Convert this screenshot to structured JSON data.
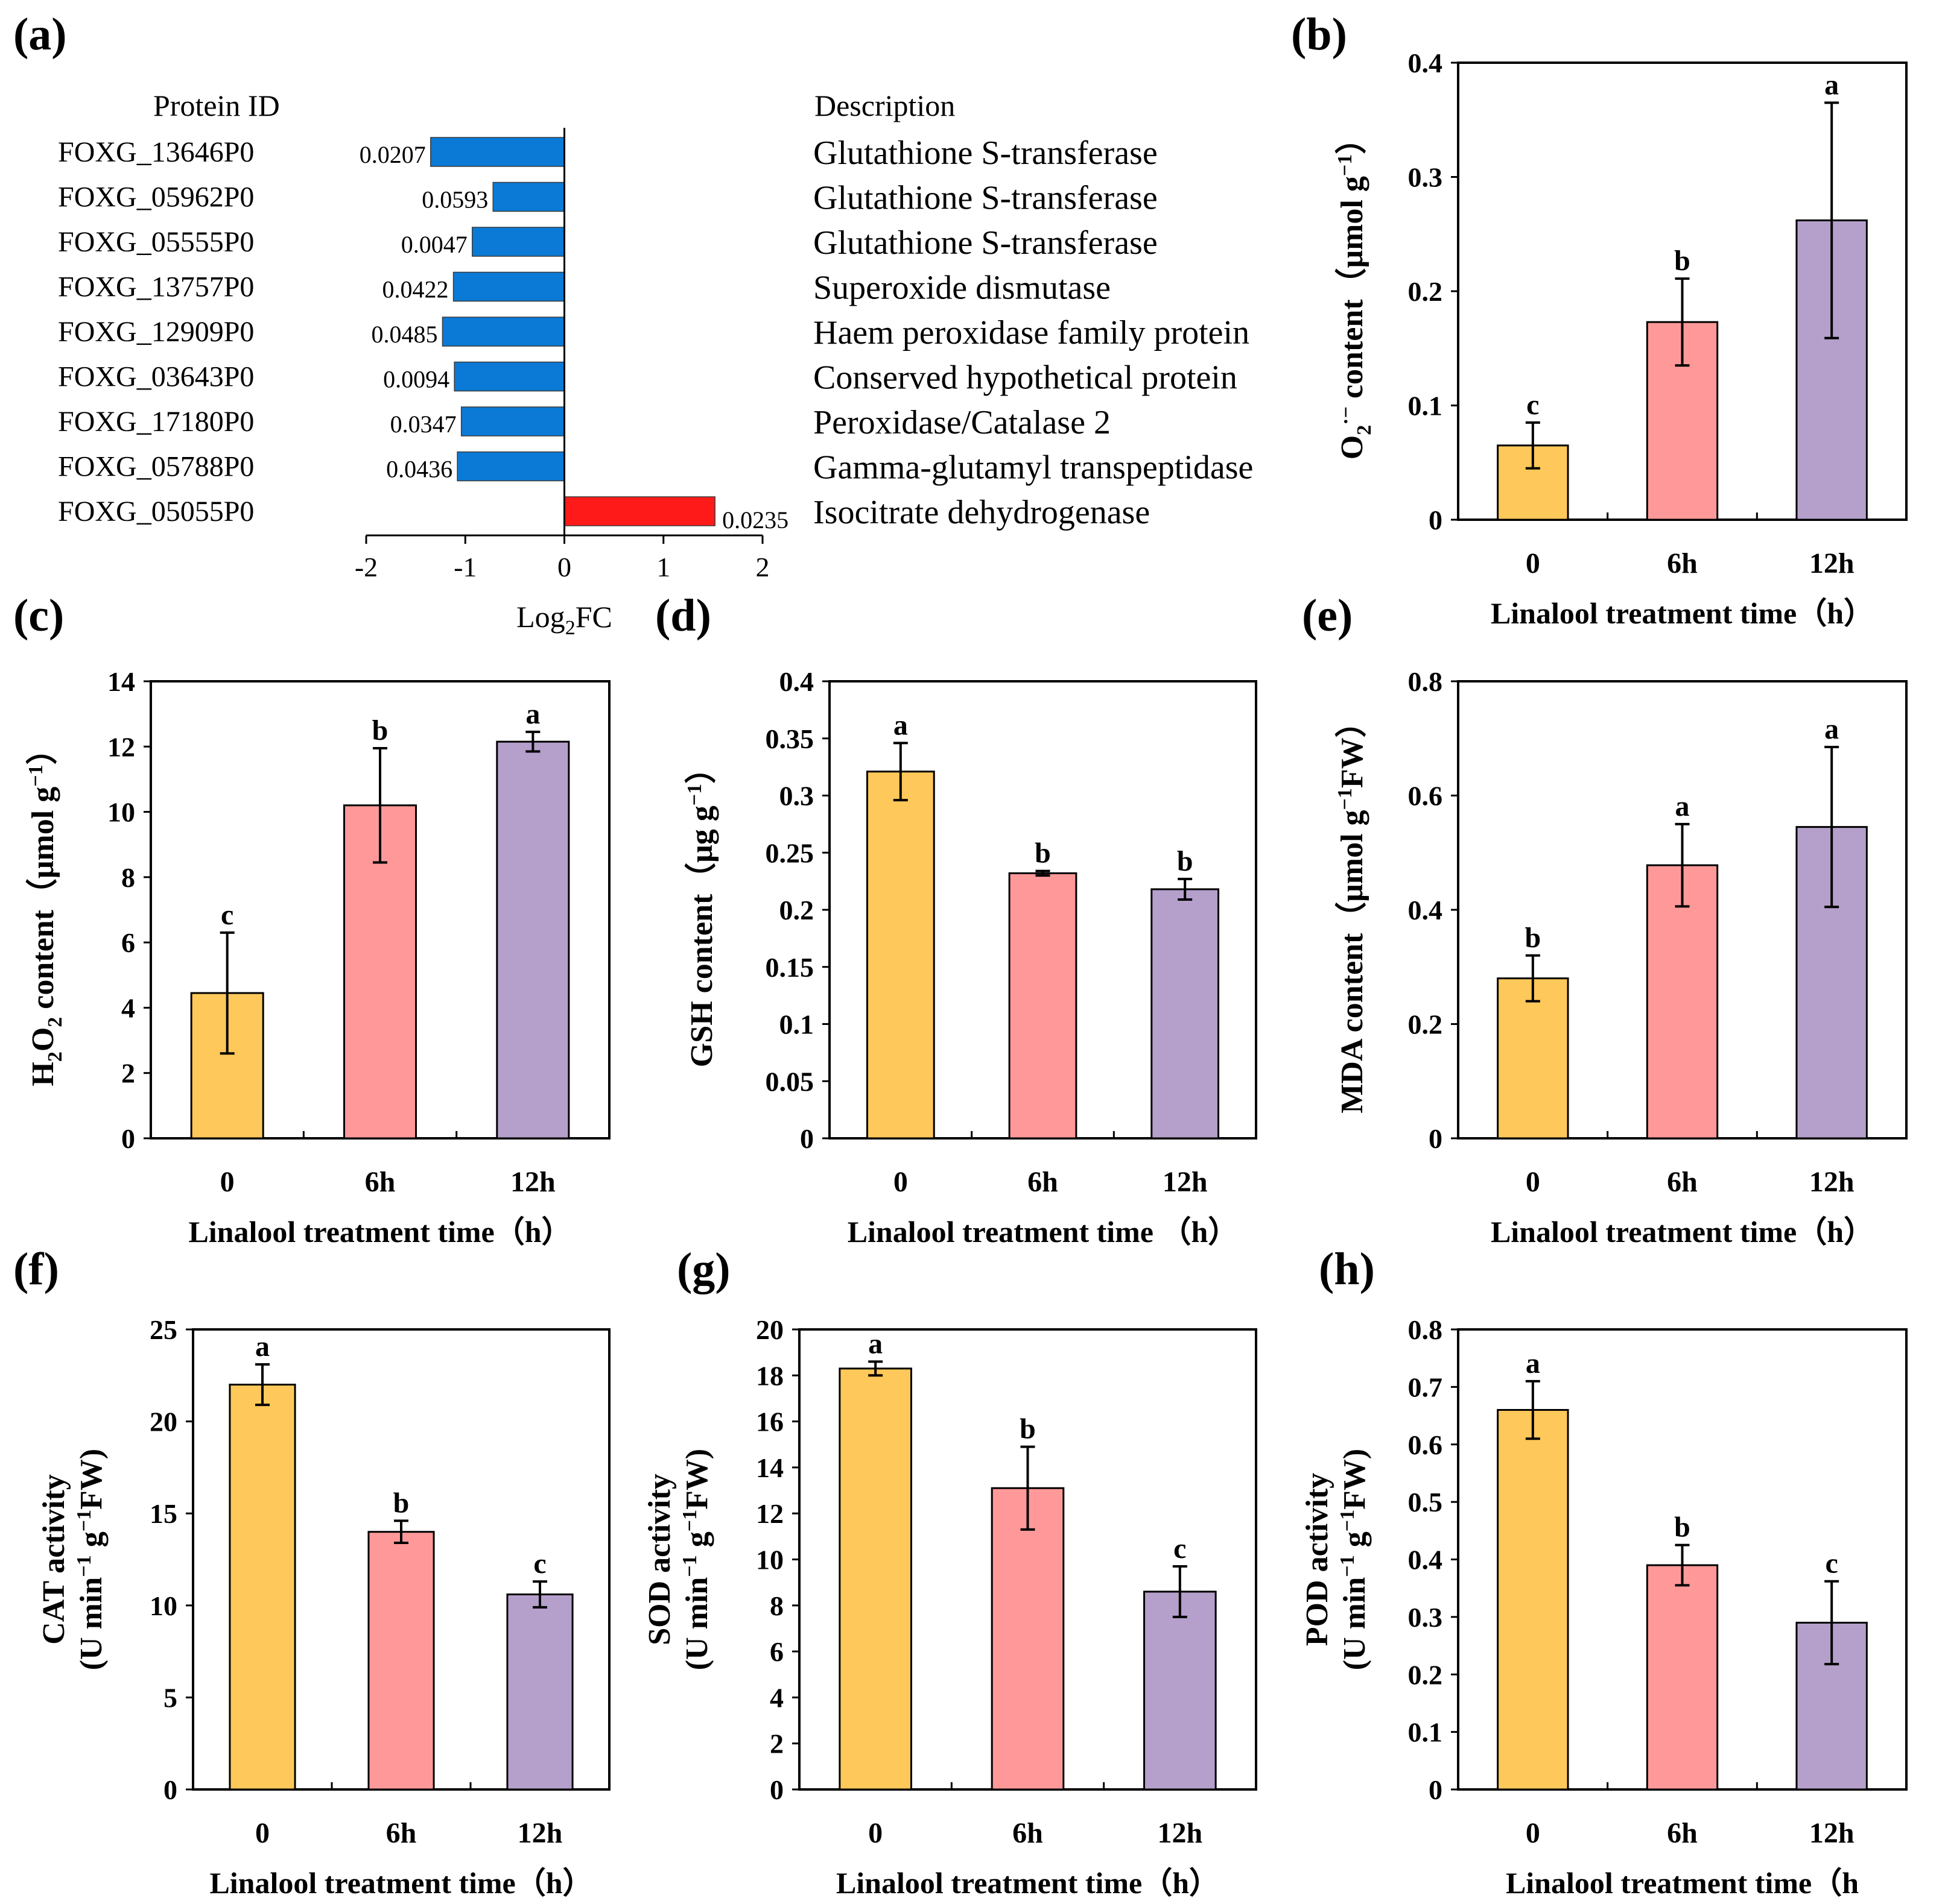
{
  "colors": {
    "bar_0": "#FFC85A",
    "bar_6h": "#FF9999",
    "bar_12h": "#B59FCB",
    "neg_bar": "#0A7AD6",
    "pos_bar": "#FF1A1A"
  },
  "panel_a": {
    "letter": "(a)",
    "header_id": "Protein ID",
    "header_desc": "Description",
    "xlabel_main": "Log",
    "xlabel_sub": "2",
    "xlabel_end": "FC"
  },
  "chart_data": [
    {
      "id": "a",
      "type": "bar",
      "orientation": "horizontal",
      "categories": [
        "FOXG_13646P0",
        "FOXG_05962P0",
        "FOXG_05555P0",
        "FOXG_13757P0",
        "FOXG_12909P0",
        "FOXG_03643P0",
        "FOXG_17180P0",
        "FOXG_05788P0",
        "FOXG_05055P0"
      ],
      "values": [
        -1.35,
        -0.72,
        -0.93,
        -1.12,
        -1.23,
        -1.11,
        -1.04,
        -1.08,
        1.52
      ],
      "value_labels": [
        "0.0207",
        "0.0593",
        "0.0047",
        "0.0422",
        "0.0485",
        "0.0094",
        "0.0347",
        "0.0436",
        "0.0235"
      ],
      "descriptions": [
        "Glutathione S-transferase",
        "Glutathione S-transferase",
        "Glutathione S-transferase",
        "Superoxide dismutase",
        "Haem peroxidase family protein",
        "Conserved hypothetical protein",
        "Peroxidase/Catalase 2",
        "Gamma-glutamyl transpeptidase",
        "Isocitrate dehydrogenase"
      ],
      "xlim": [
        -2,
        2
      ],
      "xticks": [
        "-2",
        "-1",
        "0",
        "1",
        "2"
      ],
      "xlabel": "Log2FC"
    },
    {
      "id": "b",
      "letter": "(b)",
      "type": "bar",
      "categories": [
        "0",
        "6h",
        "12h"
      ],
      "values": [
        0.065,
        0.173,
        0.262
      ],
      "errors": [
        0.02,
        0.038,
        0.103
      ],
      "letters": [
        "c",
        "b",
        "a"
      ],
      "ylim": [
        0,
        0.4
      ],
      "yticks": [
        "0",
        "0.1",
        "0.2",
        "0.3",
        "0.4"
      ],
      "xlabel": "Linalool treatment time（h）",
      "ylabel": "O2·− content（μmol g−1）"
    },
    {
      "id": "c",
      "letter": "(c)",
      "type": "bar",
      "categories": [
        "0",
        "6h",
        "12h"
      ],
      "values": [
        4.45,
        10.2,
        12.15
      ],
      "errors": [
        1.85,
        1.75,
        0.3
      ],
      "letters": [
        "c",
        "b",
        "a"
      ],
      "ylim": [
        0,
        14
      ],
      "yticks": [
        "0",
        "2",
        "4",
        "6",
        "8",
        "10",
        "12",
        "14"
      ],
      "xlabel": "Linalool treatment time（h）",
      "ylabel": "H2O2 content（μmol g−1）"
    },
    {
      "id": "d",
      "letter": "(d)",
      "type": "bar",
      "categories": [
        "0",
        "6h",
        "12h"
      ],
      "values": [
        0.321,
        0.232,
        0.218
      ],
      "errors": [
        0.025,
        0.002,
        0.009
      ],
      "letters": [
        "a",
        "b",
        "b"
      ],
      "ylim": [
        0,
        0.4
      ],
      "yticks": [
        "0",
        "0.05",
        "0.1",
        "0.15",
        "0.2",
        "0.25",
        "0.3",
        "0.35",
        "0.4"
      ],
      "xlabel": "Linalool treatment time （h）",
      "ylabel": "GSH content（μg g−1）"
    },
    {
      "id": "e",
      "letter": "(e)",
      "type": "bar",
      "categories": [
        "0",
        "6h",
        "12h"
      ],
      "values": [
        0.28,
        0.478,
        0.545
      ],
      "errors": [
        0.04,
        0.072,
        0.14
      ],
      "letters": [
        "b",
        "a",
        "a"
      ],
      "ylim": [
        0,
        0.8
      ],
      "yticks": [
        "0",
        "0.2",
        "0.4",
        "0.6",
        "0.8"
      ],
      "xlabel": "Linalool treatment time（h）",
      "ylabel": "MDA content（μmol g−1FW）"
    },
    {
      "id": "f",
      "letter": "(f)",
      "type": "bar",
      "categories": [
        "0",
        "6h",
        "12h"
      ],
      "values": [
        22.0,
        14.0,
        10.6
      ],
      "errors": [
        1.1,
        0.6,
        0.7
      ],
      "letters": [
        "a",
        "b",
        "c"
      ],
      "ylim": [
        0,
        25
      ],
      "yticks": [
        "0",
        "5",
        "10",
        "15",
        "20",
        "25"
      ],
      "xlabel": "Linalool treatment time（h）",
      "ylabel_line1": "CAT activity",
      "ylabel_line2": "(U min−1 g−1FW)"
    },
    {
      "id": "g",
      "letter": "(g)",
      "type": "bar",
      "categories": [
        "0",
        "6h",
        "12h"
      ],
      "values": [
        18.3,
        13.1,
        8.6
      ],
      "errors": [
        0.3,
        1.8,
        1.1
      ],
      "letters": [
        "a",
        "b",
        "c"
      ],
      "ylim": [
        0,
        20
      ],
      "yticks": [
        "0",
        "2",
        "4",
        "6",
        "8",
        "10",
        "12",
        "14",
        "16",
        "18",
        "20"
      ],
      "xlabel": "Linalool treatment time（h）",
      "ylabel_line1": "SOD activity",
      "ylabel_line2": "(U min−1 g−1FW)"
    },
    {
      "id": "h",
      "letter": "(h)",
      "type": "bar",
      "categories": [
        "0",
        "6h",
        "12h"
      ],
      "values": [
        0.66,
        0.39,
        0.29
      ],
      "errors": [
        0.05,
        0.035,
        0.072
      ],
      "letters": [
        "a",
        "b",
        "c"
      ],
      "ylim": [
        0,
        0.8
      ],
      "yticks": [
        "0",
        "0.1",
        "0.2",
        "0.3",
        "0.4",
        "0.5",
        "0.6",
        "0.7",
        "0.8"
      ],
      "xlabel": "Linalool treatment time（h",
      "ylabel_line1": "POD activity",
      "ylabel_line2": "(U min−1 g−1FW)"
    }
  ]
}
